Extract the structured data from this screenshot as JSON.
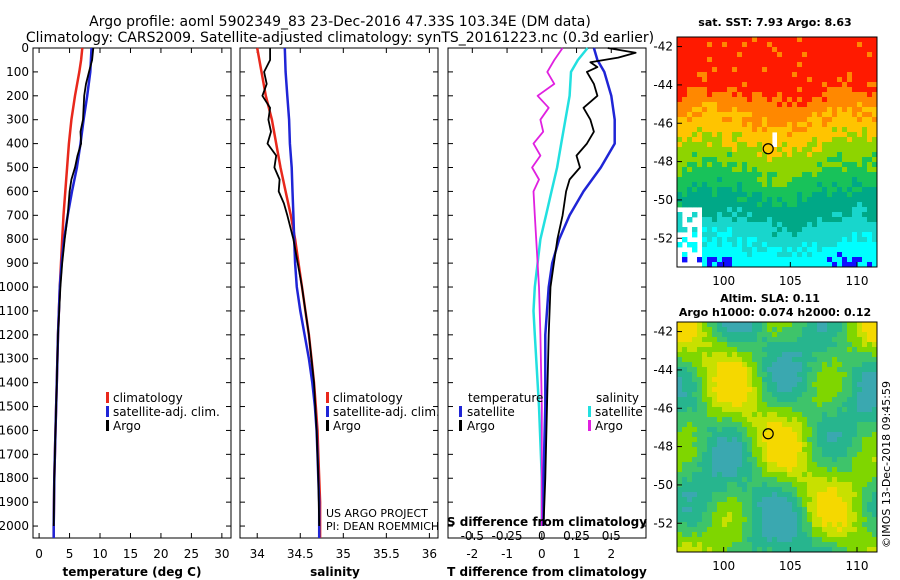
{
  "titles": {
    "line1": "Argo profile: aoml 5902349_83 23-Dec-2016 47.33S 103.34E (DM data)",
    "line2": "Climatology: CARS2009. Satellite-adjusted climatology: synTS_20161223.nc (0.3d earlier)"
  },
  "colors": {
    "climatology": "#e8281c",
    "satellite": "#1f25d6",
    "argo": "#000000",
    "cyan": "#22e0e0",
    "magenta": "#e020e0"
  },
  "depth_axis": {
    "min": 0,
    "max": 2050,
    "ticks": [
      "0",
      "100",
      "200",
      "300",
      "400",
      "500",
      "600",
      "700",
      "800",
      "900",
      "1000",
      "1100",
      "1200",
      "1300",
      "1400",
      "1500",
      "1600",
      "1700",
      "1800",
      "1900",
      "2000"
    ]
  },
  "chart_data": [
    {
      "type": "line",
      "panel": "temperature",
      "xlabel": "temperature (deg C)",
      "xlim": [
        -1,
        31.5
      ],
      "xticks": [
        "0",
        "5",
        "10",
        "15",
        "20",
        "25",
        "30"
      ],
      "legend": [
        "climatology",
        "satellite-adj. clim.",
        "Argo"
      ],
      "series": [
        {
          "name": "climatology",
          "depth": [
            0,
            50,
            100,
            200,
            300,
            400,
            500,
            600,
            700,
            800,
            900,
            1000,
            1200,
            1400,
            1600,
            1800,
            2000,
            2050
          ],
          "values": [
            7.1,
            6.9,
            6.6,
            5.9,
            5.3,
            4.9,
            4.6,
            4.3,
            4.0,
            3.8,
            3.6,
            3.4,
            3.1,
            2.9,
            2.7,
            2.5,
            2.4,
            2.4
          ]
        },
        {
          "name": "satellite-adj. clim.",
          "depth": [
            0,
            50,
            100,
            200,
            300,
            400,
            500,
            600,
            700,
            800,
            900,
            1000,
            1200,
            1400,
            1600,
            1800,
            2000,
            2050
          ],
          "values": [
            8.6,
            8.5,
            8.4,
            7.9,
            7.3,
            6.8,
            6.2,
            5.4,
            4.7,
            4.1,
            3.7,
            3.4,
            3.1,
            2.9,
            2.7,
            2.5,
            2.4,
            2.4
          ]
        },
        {
          "name": "Argo",
          "depth": [
            0,
            50,
            100,
            150,
            200,
            250,
            300,
            350,
            400,
            450,
            500,
            550,
            600,
            700,
            800,
            900,
            1000,
            1200,
            1400,
            1600,
            1800,
            2000
          ],
          "values": [
            8.9,
            8.7,
            8.2,
            7.7,
            7.4,
            7.3,
            7.2,
            6.8,
            6.9,
            6.3,
            5.9,
            5.3,
            5.0,
            4.7,
            4.2,
            3.8,
            3.5,
            3.1,
            2.9,
            2.7,
            2.5,
            2.4
          ]
        }
      ]
    },
    {
      "type": "line",
      "panel": "salinity",
      "xlabel": "salinity",
      "xlim": [
        33.8,
        36.1
      ],
      "xticks": [
        "34",
        "34.5",
        "35",
        "35.5",
        "36"
      ],
      "legend": [
        "climatology",
        "satellite-adj. clim.",
        "Argo"
      ],
      "series": [
        {
          "name": "climatology",
          "depth": [
            0,
            100,
            200,
            300,
            400,
            500,
            600,
            700,
            800,
            900,
            1000,
            1100,
            1200,
            1300,
            1400,
            1500,
            1600,
            1700,
            1800,
            1900,
            2000,
            2050
          ],
          "values": [
            34.0,
            34.05,
            34.1,
            34.17,
            34.22,
            34.27,
            34.33,
            34.39,
            34.44,
            34.48,
            34.52,
            34.56,
            34.6,
            34.63,
            34.66,
            34.68,
            34.7,
            34.71,
            34.72,
            34.73,
            34.73,
            34.73
          ]
        },
        {
          "name": "satellite-adj. clim.",
          "depth": [
            0,
            100,
            200,
            300,
            400,
            500,
            600,
            700,
            800,
            900,
            1000,
            1100,
            1200,
            1300,
            1400,
            1500,
            1600,
            1700,
            1800,
            1900,
            2000,
            2050
          ],
          "values": [
            34.32,
            34.33,
            34.35,
            34.37,
            34.38,
            34.4,
            34.41,
            34.42,
            34.43,
            34.44,
            34.46,
            34.5,
            34.55,
            34.6,
            34.64,
            34.67,
            34.69,
            34.7,
            34.71,
            34.72,
            34.72,
            34.72
          ]
        },
        {
          "name": "Argo",
          "depth": [
            0,
            50,
            100,
            150,
            200,
            250,
            300,
            350,
            400,
            450,
            500,
            550,
            600,
            650,
            700,
            800,
            900,
            1000,
            1100,
            1200,
            1400,
            1600,
            1800,
            2000
          ],
          "values": [
            34.15,
            34.15,
            34.08,
            34.11,
            34.06,
            34.15,
            34.13,
            34.16,
            34.12,
            34.22,
            34.2,
            34.26,
            34.25,
            34.31,
            34.35,
            34.42,
            34.47,
            34.52,
            34.56,
            34.6,
            34.66,
            34.69,
            34.71,
            34.72
          ]
        }
      ]
    },
    {
      "type": "line",
      "panel": "difference",
      "xlabel": "T difference from climatology",
      "xlabel2": "S difference from climatology",
      "xlim": [
        -2.7,
        3.0
      ],
      "xticks": [
        "-2",
        "-1",
        "0",
        "1",
        "2"
      ],
      "xticks2": [
        "-0.5",
        "-0.25",
        "0",
        "0.25",
        "0.5"
      ],
      "legend_temperature_title": "temperature",
      "legend_temperature": [
        "satellite",
        "Argo"
      ],
      "legend_salinity_title": "salinity",
      "legend_salinity": [
        "satellite",
        "Argo"
      ],
      "series": [
        {
          "name": "temperature satellite",
          "depth": [
            0,
            50,
            100,
            200,
            300,
            400,
            500,
            600,
            700,
            800,
            900,
            1000,
            1100,
            1200,
            1500,
            1800,
            2000
          ],
          "values": [
            1.5,
            1.6,
            1.8,
            2.0,
            2.1,
            2.1,
            1.7,
            1.2,
            0.8,
            0.5,
            0.3,
            0.2,
            0.15,
            0.1,
            0.1,
            0.05,
            0.05
          ]
        },
        {
          "name": "temperature Argo",
          "depth": [
            0,
            20,
            40,
            60,
            80,
            100,
            150,
            200,
            250,
            300,
            350,
            400,
            450,
            500,
            550,
            600,
            700,
            800,
            900,
            1000,
            1200,
            1500,
            1800,
            2000
          ],
          "values": [
            1.9,
            2.7,
            2.2,
            1.4,
            1.6,
            1.3,
            1.5,
            1.6,
            1.2,
            1.4,
            1.5,
            1.3,
            1.0,
            1.1,
            0.8,
            0.7,
            0.6,
            0.45,
            0.35,
            0.25,
            0.2,
            0.15,
            0.1,
            0.05
          ]
        },
        {
          "name": "salinity satellite",
          "depth": [
            0,
            50,
            100,
            200,
            300,
            400,
            500,
            600,
            700,
            800,
            900,
            1000,
            1100,
            1200,
            1300,
            1500,
            1800,
            2000
          ],
          "values": [
            0.33,
            0.26,
            0.21,
            0.2,
            0.17,
            0.14,
            0.11,
            0.07,
            0.03,
            -0.01,
            -0.03,
            -0.05,
            -0.06,
            -0.05,
            -0.04,
            -0.02,
            0,
            0
          ]
        },
        {
          "name": "salinity Argo",
          "depth": [
            0,
            50,
            100,
            150,
            200,
            250,
            300,
            350,
            400,
            450,
            500,
            550,
            600,
            700,
            800,
            900,
            1000,
            1200,
            1500,
            1800,
            2000
          ],
          "values": [
            0.15,
            0.09,
            0.04,
            0.09,
            -0.03,
            0.05,
            -0.01,
            0.01,
            -0.06,
            -0.01,
            -0.07,
            -0.02,
            -0.06,
            -0.05,
            -0.04,
            -0.03,
            -0.02,
            -0.01,
            0,
            0,
            0
          ]
        }
      ]
    },
    {
      "type": "heatmap",
      "panel": "sst-map",
      "title": "sat. SST: 7.93 Argo: 8.63",
      "xticks": [
        "100",
        "105",
        "110"
      ],
      "yticks": [
        "-42",
        "-44",
        "-46",
        "-48",
        "-50",
        "-52"
      ],
      "lon_range": [
        96.5,
        111.5
      ],
      "lat_range": [
        -53.5,
        -41.5
      ],
      "marker": {
        "lon": 103.34,
        "lat": -47.33
      }
    },
    {
      "type": "heatmap",
      "panel": "sla-map",
      "title_line1": "Altim. SLA: 0.11",
      "title_line2": "Argo h1000: 0.074 h2000: 0.12",
      "xticks": [
        "100",
        "105",
        "110"
      ],
      "yticks": [
        "-42",
        "-44",
        "-46",
        "-48",
        "-50",
        "-52"
      ],
      "lon_range": [
        96.5,
        111.5
      ],
      "lat_range": [
        -53.5,
        -41.5
      ],
      "marker": {
        "lon": 103.34,
        "lat": -47.33
      }
    }
  ],
  "credits": {
    "project_line1": "US ARGO PROJECT",
    "project_line2": "PI: DEAN ROEMMICH",
    "imos": "©IMOS 13-Dec-2018 09:45:59"
  }
}
